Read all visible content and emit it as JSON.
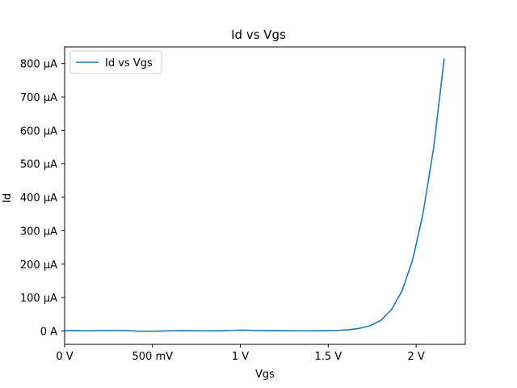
{
  "chart_data": {
    "type": "line",
    "title": "Id vs Vgs",
    "xlabel": "Vgs",
    "ylabel": "Id",
    "xlim": [
      0,
      2.28
    ],
    "ylim": [
      -40,
      850
    ],
    "grid": false,
    "legend_position": "top-left",
    "x_ticks": [
      {
        "value": 0,
        "label": "0 V"
      },
      {
        "value": 0.5,
        "label": "500 mV"
      },
      {
        "value": 1.0,
        "label": "1 V"
      },
      {
        "value": 1.5,
        "label": "1.5 V"
      },
      {
        "value": 2.0,
        "label": "2 V"
      }
    ],
    "y_ticks": [
      {
        "value": 0,
        "label": "0 A"
      },
      {
        "value": 100,
        "label": "100 µA"
      },
      {
        "value": 200,
        "label": "200 µA"
      },
      {
        "value": 300,
        "label": "300 µA"
      },
      {
        "value": 400,
        "label": "400 µA"
      },
      {
        "value": 500,
        "label": "500 µA"
      },
      {
        "value": 600,
        "label": "600 µA"
      },
      {
        "value": 700,
        "label": "700 µA"
      },
      {
        "value": 800,
        "label": "800 µA"
      }
    ],
    "series": [
      {
        "name": "Id vs Vgs",
        "color": "#1f77b4",
        "x": [
          0,
          0.06,
          0.12,
          0.18,
          0.24,
          0.3,
          0.36,
          0.42,
          0.48,
          0.54,
          0.6,
          0.66,
          0.72,
          0.78,
          0.84,
          0.9,
          0.96,
          1.02,
          1.08,
          1.14,
          1.2,
          1.26,
          1.32,
          1.38,
          1.44,
          1.5,
          1.56,
          1.62,
          1.68,
          1.74,
          1.8,
          1.86,
          1.92,
          1.98,
          2.04,
          2.1,
          2.16
        ],
        "y": [
          1,
          1.5,
          0.5,
          1.2,
          1.5,
          2,
          1,
          -0.5,
          -1,
          -0.3,
          0.5,
          1.5,
          1,
          0.5,
          0.3,
          1,
          2,
          2.5,
          1.5,
          1.2,
          1.5,
          1,
          0.8,
          0.5,
          1,
          1.2,
          2,
          4,
          8,
          16,
          32,
          64,
          120,
          212,
          353,
          548,
          815
        ]
      }
    ]
  }
}
